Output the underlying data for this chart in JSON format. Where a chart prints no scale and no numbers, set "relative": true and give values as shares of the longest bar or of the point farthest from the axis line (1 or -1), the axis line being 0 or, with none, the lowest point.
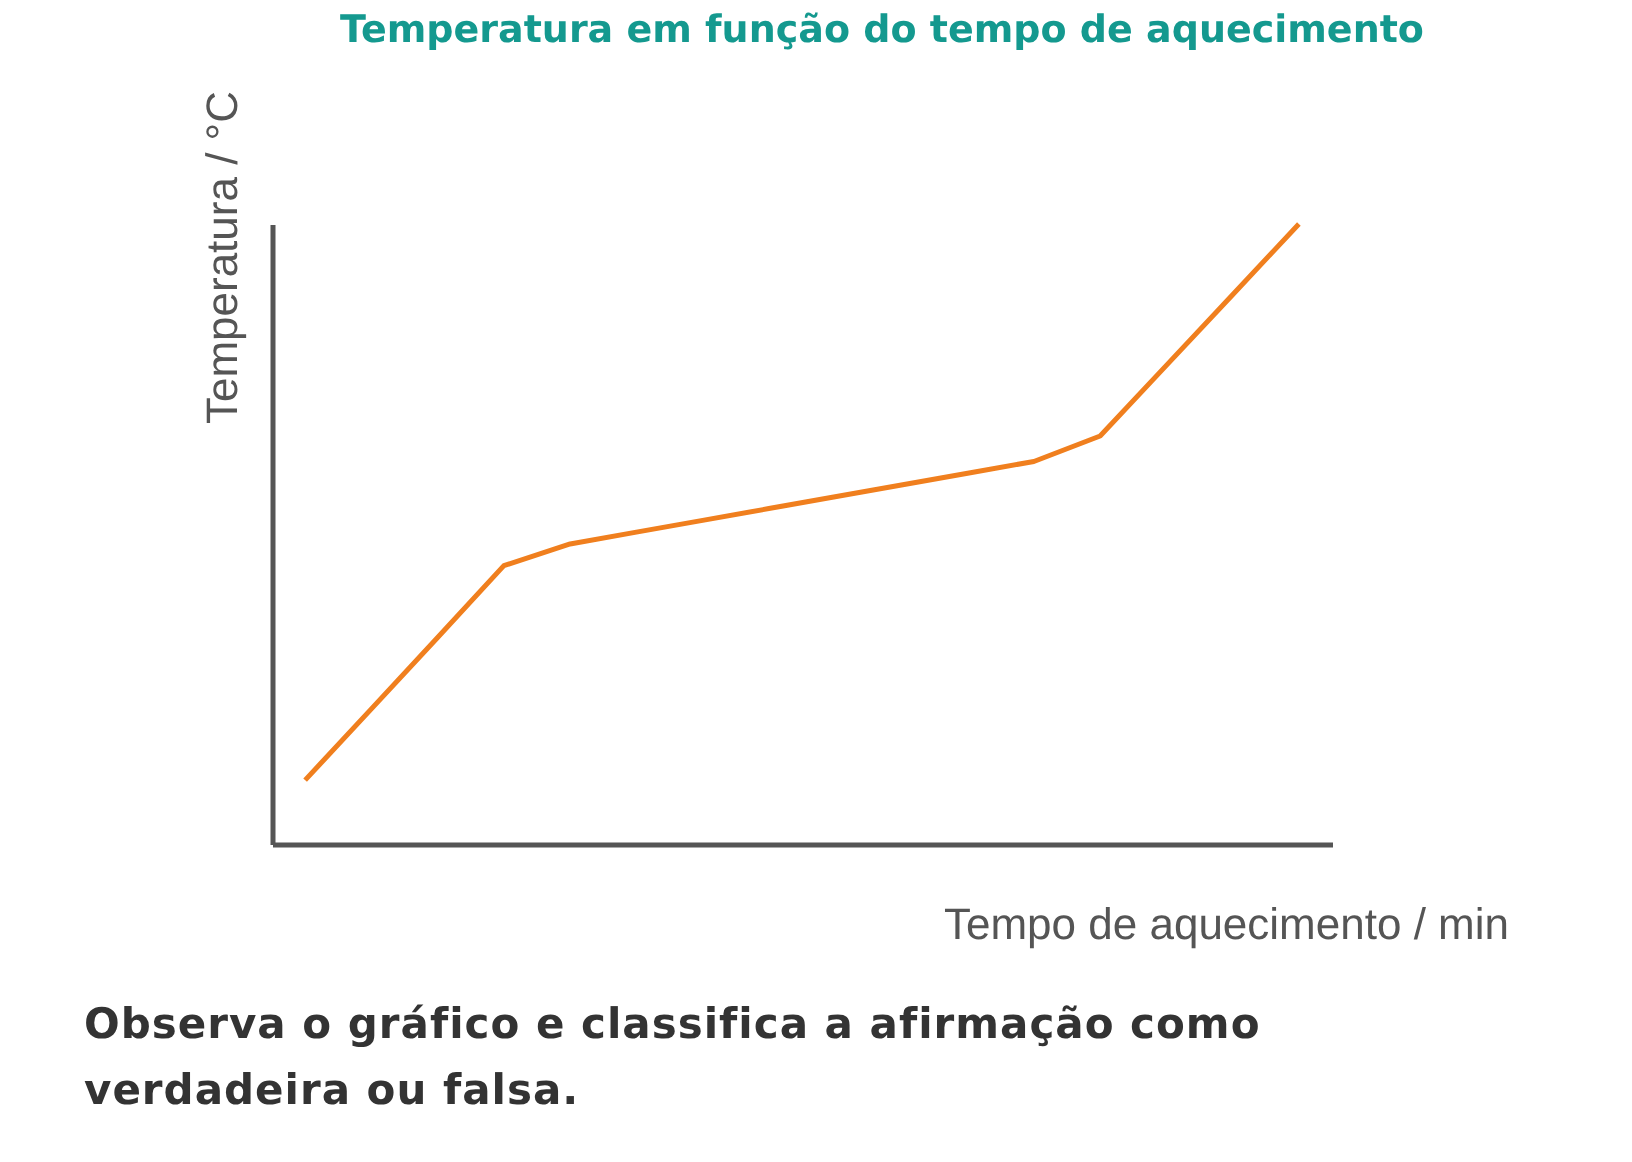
{
  "chart_data": {
    "type": "line",
    "title": "Temperatura em função do tempo de aquecimento",
    "xlabel": "Tempo de aquecimento / min",
    "ylabel": "Temperatura / °C",
    "relative": true,
    "categories": [
      null,
      null,
      null,
      null,
      null,
      null,
      null,
      null,
      null,
      null,
      null,
      null,
      null,
      null,
      null,
      null
    ],
    "series": [
      {
        "color": "#f07f1e",
        "values": [
          0.103,
          0.218,
          0.333,
          0.449,
          0.484,
          0.503,
          0.522,
          0.541,
          0.56,
          0.579,
          0.598,
          0.617,
          0.658,
          0.772,
          0.886,
          1.0
        ]
      }
    ],
    "marker": "none",
    "line_style": "solid",
    "grid": false,
    "legend": false,
    "annotations": [
      "Observa o gráfico e classifica a afirmação como verdadeira ou falsa."
    ]
  }
}
